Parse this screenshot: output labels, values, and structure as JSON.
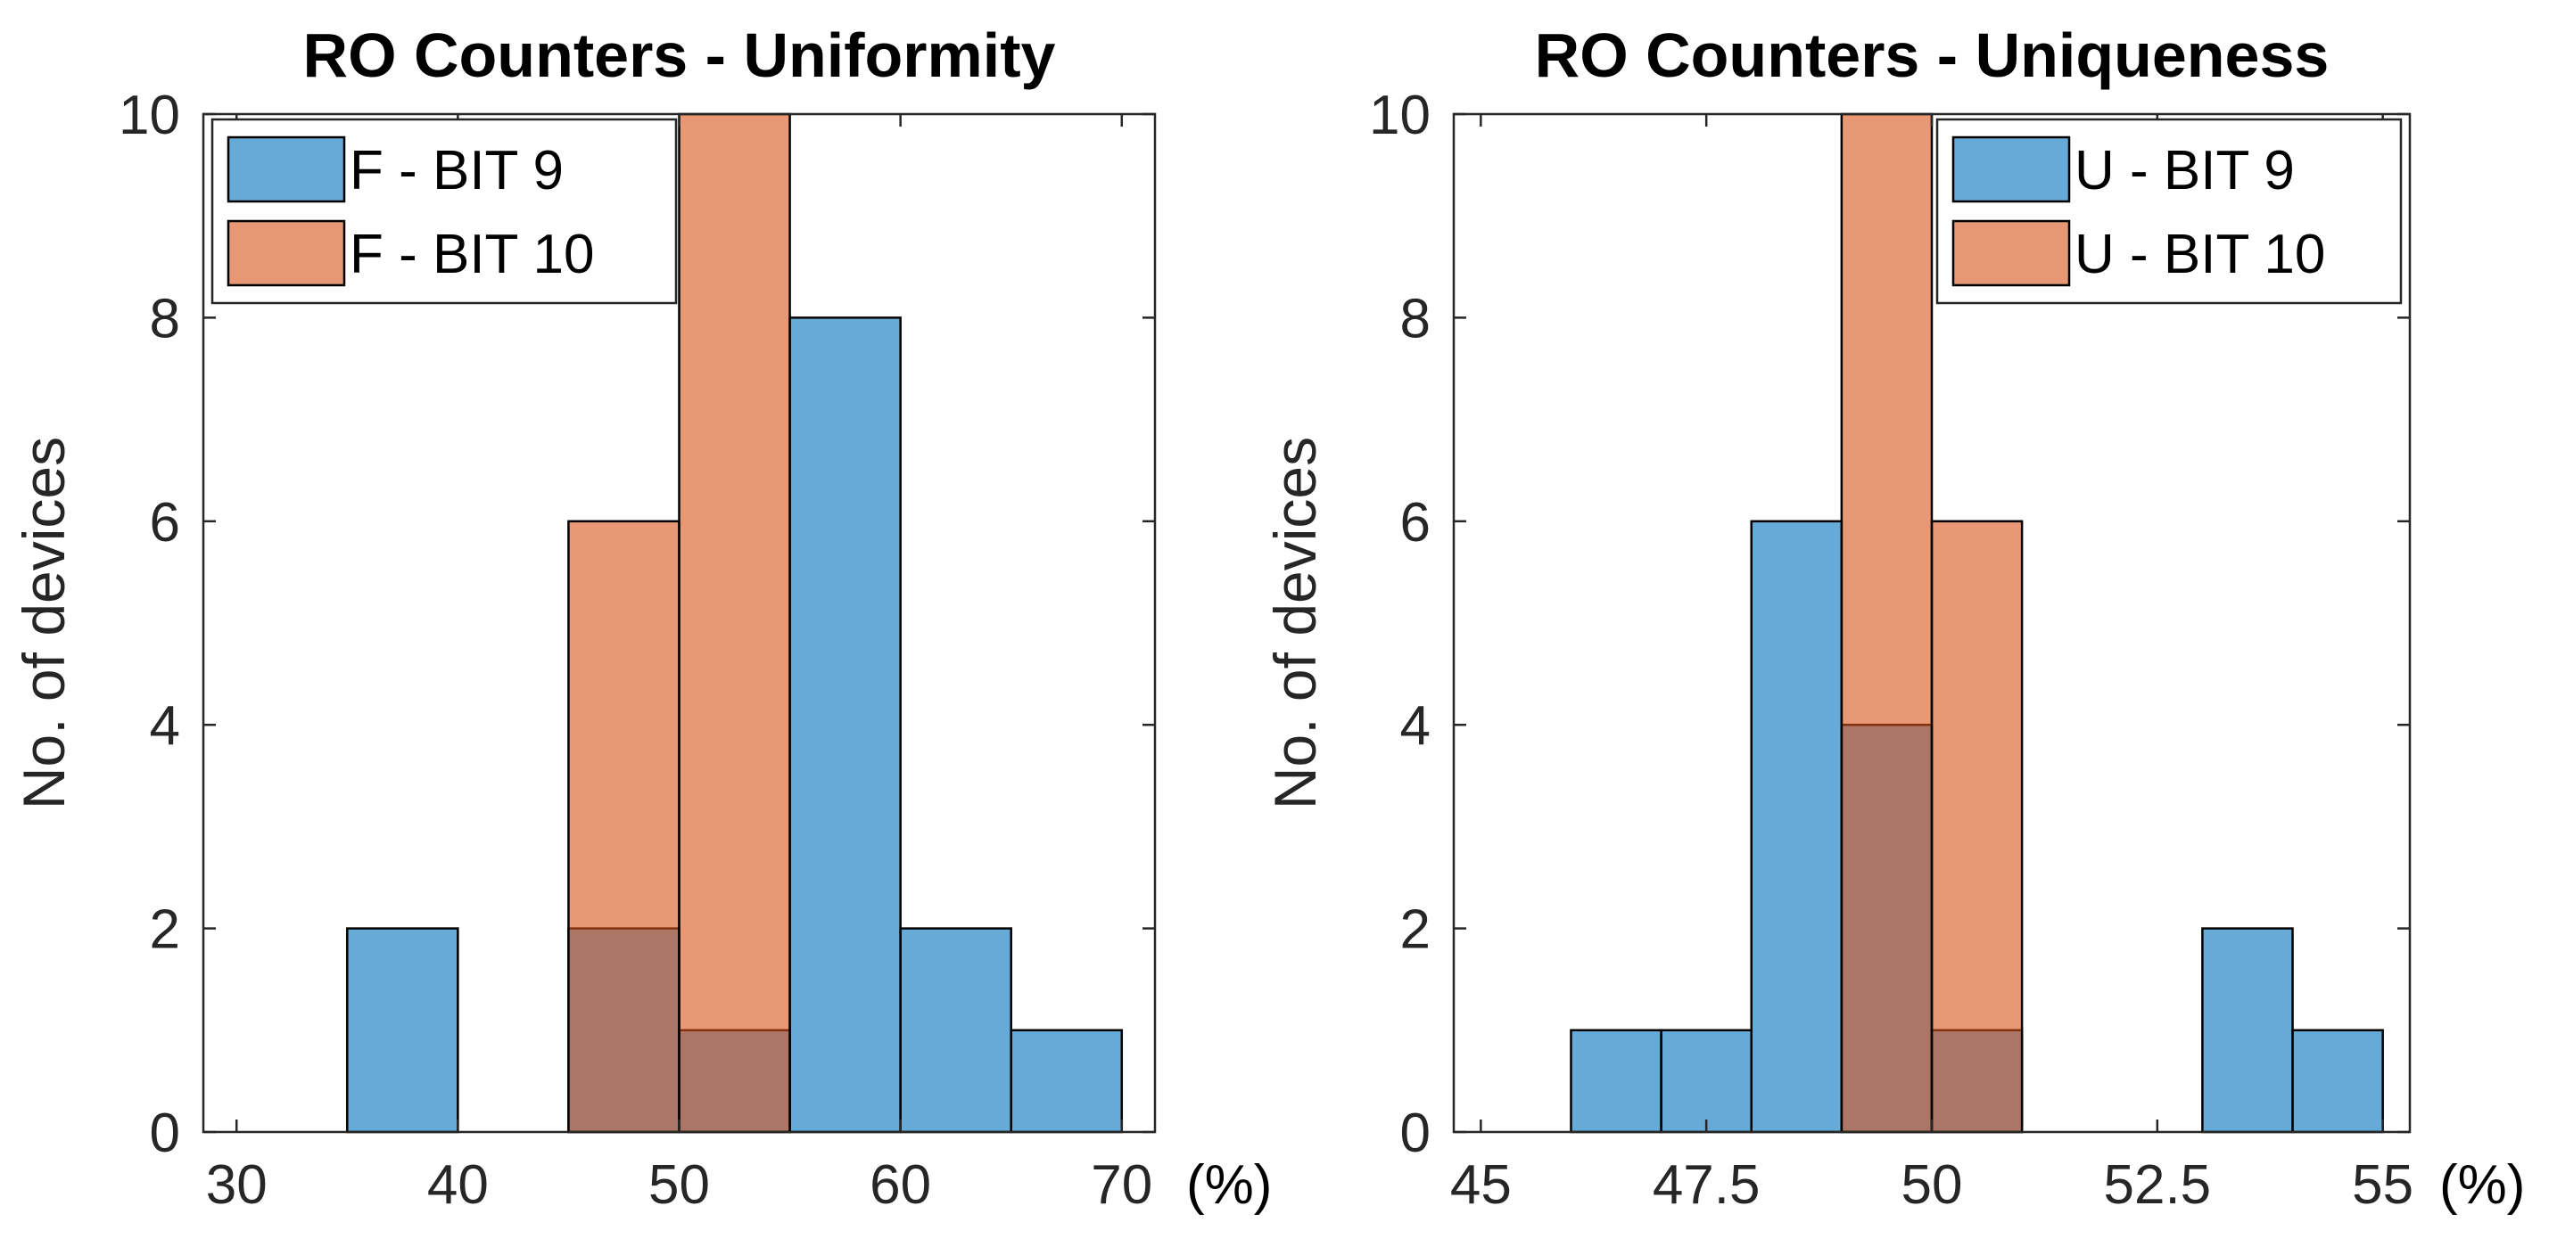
{
  "chart_data": [
    {
      "type": "bar",
      "title": "RO Counters - Uniformity",
      "ylabel": "No. of devices",
      "xlabel": "",
      "unit_label": "(%)",
      "xlim": [
        28.5,
        71.5
      ],
      "ylim": [
        0,
        10
      ],
      "xticks": [
        30,
        40,
        50,
        60,
        70
      ],
      "xtick_labels": [
        "30",
        "40",
        "50",
        "60",
        "70"
      ],
      "yticks": [
        0,
        2,
        4,
        6,
        8,
        10
      ],
      "ytick_labels": [
        "0",
        "2",
        "4",
        "6",
        "8",
        "10"
      ],
      "legend_position": "top-left",
      "series": [
        {
          "name": "F - BIT 9",
          "color": "#0072BD",
          "bins": [
            [
              35,
              40,
              2
            ],
            [
              45,
              50,
              2
            ],
            [
              50,
              55,
              1
            ],
            [
              55,
              60,
              8
            ],
            [
              60,
              65,
              2
            ],
            [
              65,
              70,
              1
            ]
          ]
        },
        {
          "name": "F - BIT 10",
          "color": "#D95319",
          "bins": [
            [
              45,
              50,
              6
            ],
            [
              50,
              55,
              10
            ]
          ]
        }
      ]
    },
    {
      "type": "bar",
      "title": "RO Counters - Uniqueness",
      "ylabel": "No. of devices",
      "xlabel": "",
      "unit_label": "(%)",
      "xlim": [
        44.7,
        55.3
      ],
      "ylim": [
        0,
        10
      ],
      "xticks": [
        45,
        47.5,
        50,
        52.5,
        55
      ],
      "xtick_labels": [
        "45",
        "47.5",
        "50",
        "52.5",
        "55"
      ],
      "yticks": [
        0,
        2,
        4,
        6,
        8,
        10
      ],
      "ytick_labels": [
        "0",
        "2",
        "4",
        "6",
        "8",
        "10"
      ],
      "legend_position": "top-right",
      "series": [
        {
          "name": "U - BIT 9",
          "color": "#0072BD",
          "bins": [
            [
              46,
              47,
              1
            ],
            [
              47,
              48,
              1
            ],
            [
              48,
              49,
              6
            ],
            [
              49,
              50,
              4
            ],
            [
              50,
              51,
              1
            ],
            [
              53,
              54,
              2
            ],
            [
              54,
              55,
              1
            ]
          ]
        },
        {
          "name": "U - BIT 10",
          "color": "#D95319",
          "bins": [
            [
              49,
              50,
              10
            ],
            [
              50,
              51,
              6
            ]
          ]
        }
      ]
    }
  ]
}
